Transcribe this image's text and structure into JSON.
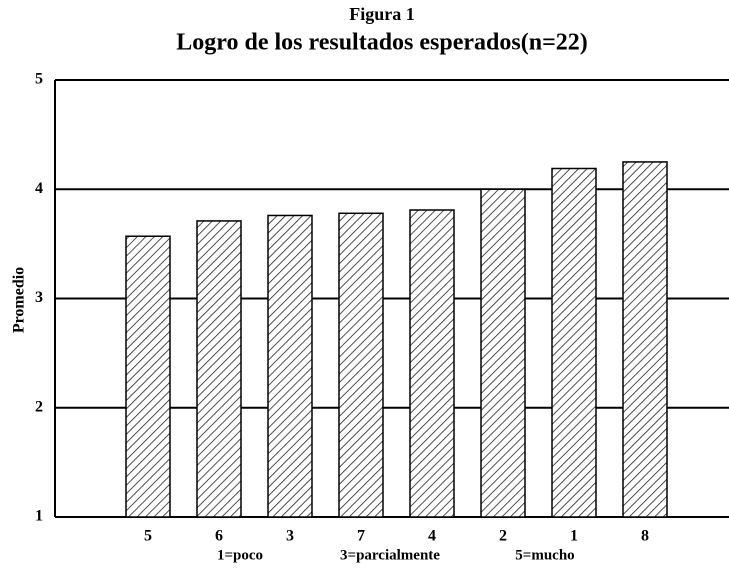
{
  "chart_data": {
    "type": "bar",
    "title": "Logro de los resultados esperados(n=22)",
    "supertitle": "Figura 1",
    "y_label": "Promedio",
    "categories": [
      "5",
      "6",
      "3",
      "7",
      "4",
      "2",
      "1",
      "8"
    ],
    "values": [
      3.57,
      3.71,
      3.76,
      3.78,
      3.81,
      4.0,
      4.19,
      4.25
    ],
    "color": "#000000",
    "ylim": [
      1,
      5
    ],
    "yticks": [
      1,
      2,
      3,
      4,
      5
    ],
    "grid": true,
    "notes": [
      "1=poco",
      "3=parcialmente",
      "5=mucho"
    ]
  }
}
